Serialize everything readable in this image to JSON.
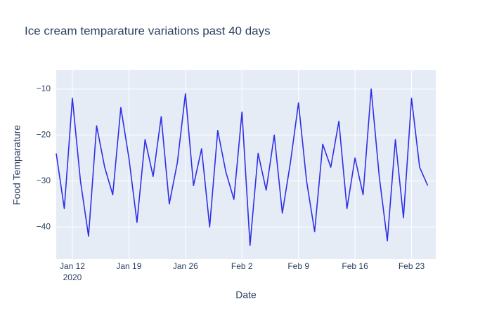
{
  "chart_data": {
    "type": "line",
    "title": "Ice cream temparature variations past 40 days",
    "x_label": "Date",
    "y_label": "Food Temparature",
    "x": [
      "2020-01-10",
      "2020-01-11",
      "2020-01-12",
      "2020-01-13",
      "2020-01-14",
      "2020-01-15",
      "2020-01-16",
      "2020-01-17",
      "2020-01-18",
      "2020-01-19",
      "2020-01-20",
      "2020-01-21",
      "2020-01-22",
      "2020-01-23",
      "2020-01-24",
      "2020-01-25",
      "2020-01-26",
      "2020-01-27",
      "2020-01-28",
      "2020-01-29",
      "2020-01-30",
      "2020-01-31",
      "2020-02-01",
      "2020-02-02",
      "2020-02-03",
      "2020-02-04",
      "2020-02-05",
      "2020-02-06",
      "2020-02-07",
      "2020-02-08",
      "2020-02-09",
      "2020-02-10",
      "2020-02-11",
      "2020-02-12",
      "2020-02-13",
      "2020-02-14",
      "2020-02-15",
      "2020-02-16",
      "2020-02-17",
      "2020-02-18",
      "2020-02-19",
      "2020-02-20",
      "2020-02-21",
      "2020-02-22",
      "2020-02-23",
      "2020-02-24",
      "2020-02-25"
    ],
    "series": [
      {
        "name": "Food Temparature",
        "color": "#2f2fe6",
        "values": [
          -24,
          -36,
          -12,
          -30,
          -42,
          -18,
          -27,
          -33,
          -14,
          -25,
          -39,
          -21,
          -29,
          -16,
          -35,
          -26,
          -11,
          -31,
          -23,
          -40,
          -19,
          -28,
          -34,
          -15,
          -44,
          -24,
          -32,
          -20,
          -37,
          -26,
          -13,
          -30,
          -41,
          -22,
          -27,
          -17,
          -36,
          -25,
          -33,
          -10,
          -29,
          -43,
          -21,
          -38,
          -12,
          -27,
          -31
        ]
      }
    ],
    "xlim": [
      "2020-01-10",
      "2020-02-26"
    ],
    "xticks": [
      {
        "value": "2020-01-12",
        "label": "Jan 12"
      },
      {
        "value": "2020-01-19",
        "label": "Jan 19"
      },
      {
        "value": "2020-01-26",
        "label": "Jan 26"
      },
      {
        "value": "2020-02-02",
        "label": "Feb 2"
      },
      {
        "value": "2020-02-09",
        "label": "Feb 9"
      },
      {
        "value": "2020-02-16",
        "label": "Feb 16"
      },
      {
        "value": "2020-02-23",
        "label": "Feb 23"
      }
    ],
    "x_year_label": "2020",
    "ylim": [
      -47,
      -5.9
    ],
    "yticks": [
      {
        "value": -40,
        "label": "−40"
      },
      {
        "value": -30,
        "label": "−30"
      },
      {
        "value": -20,
        "label": "−20"
      },
      {
        "value": -10,
        "label": "−10"
      }
    ],
    "grid": true
  }
}
